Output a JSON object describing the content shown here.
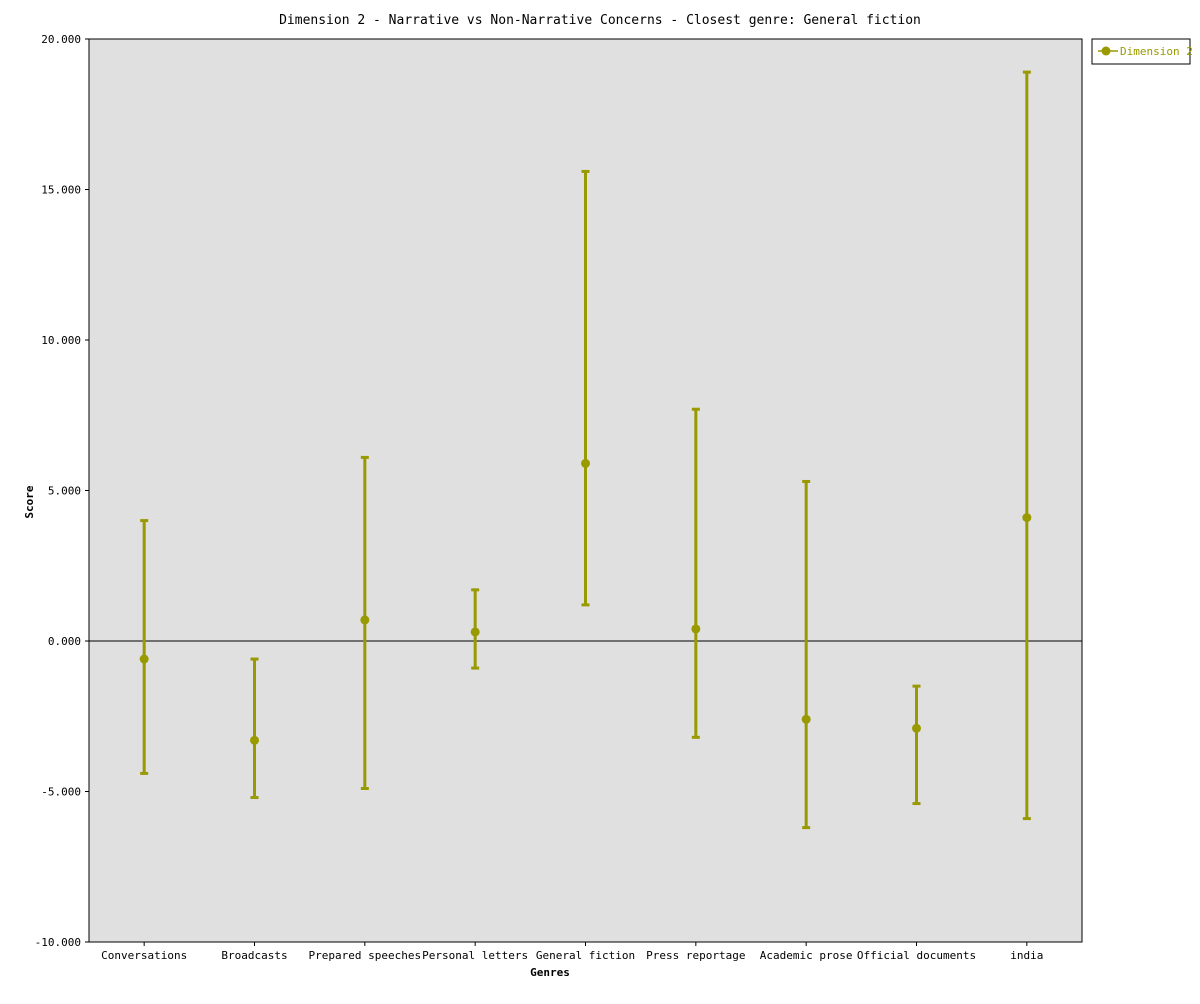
{
  "chart_data": {
    "type": "scatter",
    "title": "Dimension 2 - Narrative vs Non-Narrative Concerns - Closest genre: General fiction",
    "xlabel": "Genres",
    "ylabel": "Score",
    "ylim": [
      -10,
      20
    ],
    "yticks": [
      -10,
      -5,
      0,
      5,
      10,
      15,
      20
    ],
    "ytick_labels": [
      "-10.000",
      "-5.000",
      "0.000",
      "5.000",
      "10.000",
      "15.000",
      "20.000"
    ],
    "categories": [
      "Conversations",
      "Broadcasts",
      "Prepared speeches",
      "Personal letters",
      "General fiction",
      "Press reportage",
      "Academic prose",
      "Official documents",
      "india"
    ],
    "series": [
      {
        "name": "Dimension 2",
        "color": "#999900",
        "values": [
          -0.6,
          -3.3,
          0.7,
          0.3,
          5.9,
          0.4,
          -2.6,
          -2.9,
          4.1
        ],
        "lower": [
          -4.4,
          -5.2,
          -4.9,
          -0.9,
          1.2,
          -3.2,
          -6.2,
          -5.4,
          -5.9
        ],
        "upper": [
          4.0,
          -0.6,
          6.1,
          1.7,
          15.6,
          7.7,
          5.3,
          -1.5,
          18.9
        ]
      }
    ],
    "zero_line": true,
    "grid": false,
    "legend_position": "top-right outside",
    "plot_background": "#e0e0e0"
  }
}
